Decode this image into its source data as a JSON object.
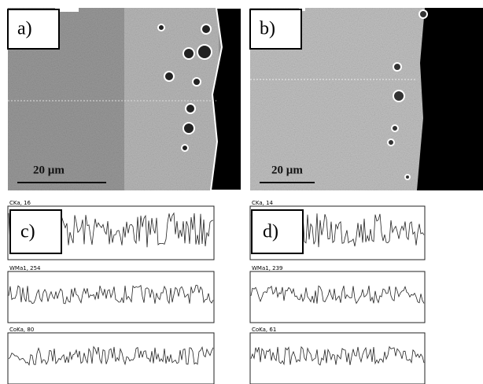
{
  "panels": [
    {
      "label": "a)",
      "scale": "20 µm"
    },
    {
      "label": "b)",
      "scale": "20 µm"
    }
  ],
  "line_scans": [
    {
      "label": "c)",
      "traces": [
        "CKa, 16",
        "WMa1, 254",
        "CoKa, 80"
      ]
    },
    {
      "label": "d)",
      "traces": [
        "CKa, 14",
        "WMa1, 239",
        "CoKa, 61"
      ]
    }
  ]
}
